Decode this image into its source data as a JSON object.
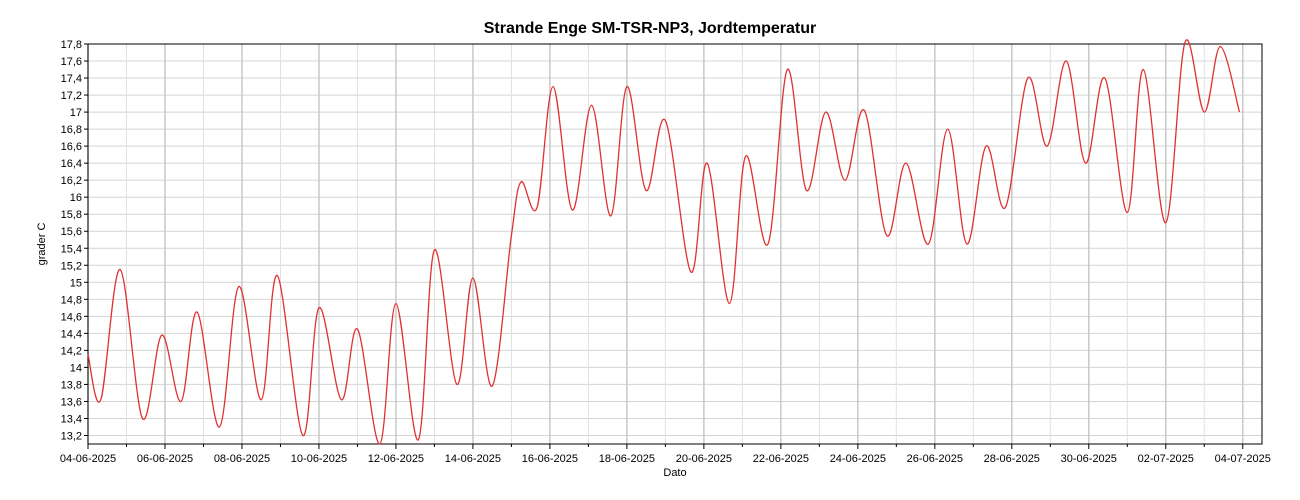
{
  "chart_data": {
    "type": "line",
    "title": "Strande Enge SM-TSR-NP3, Jordtemperatur",
    "xlabel": "Dato",
    "ylabel": "grader C",
    "ylim": [
      13.1,
      17.8
    ],
    "xlim": [
      "04-06-2025 00:00",
      "04-07-2025 12:00"
    ],
    "grid": true,
    "y_ticks": [
      "13,2",
      "13,4",
      "13,6",
      "13,8",
      "14",
      "14,2",
      "14,4",
      "14,6",
      "14,8",
      "15",
      "15,2",
      "15,4",
      "15,6",
      "15,8",
      "16",
      "16,2",
      "16,4",
      "16,6",
      "16,8",
      "17",
      "17,2",
      "17,4",
      "17,6",
      "17,8"
    ],
    "x_ticks": [
      "04-06-2025",
      "06-06-2025",
      "08-06-2025",
      "10-06-2025",
      "12-06-2025",
      "14-06-2025",
      "16-06-2025",
      "18-06-2025",
      "20-06-2025",
      "22-06-2025",
      "24-06-2025",
      "26-06-2025",
      "28-06-2025",
      "30-06-2025",
      "02-07-2025",
      "04-07-2025"
    ],
    "series": [
      {
        "color": "#e03030",
        "points": [
          [
            "04-06-2025 00:00",
            14.15
          ],
          [
            "04-06-2025 08:00",
            13.62
          ],
          [
            "04-06-2025 20:00",
            15.15
          ],
          [
            "05-06-2025 10:00",
            13.4
          ],
          [
            "05-06-2025 22:00",
            14.38
          ],
          [
            "06-06-2025 10:00",
            13.6
          ],
          [
            "06-06-2025 20:00",
            14.65
          ],
          [
            "07-06-2025 10:00",
            13.3
          ],
          [
            "07-06-2025 22:00",
            14.95
          ],
          [
            "08-06-2025 12:00",
            13.62
          ],
          [
            "08-06-2025 22:00",
            15.08
          ],
          [
            "09-06-2025 14:00",
            13.2
          ],
          [
            "10-06-2025 00:00",
            14.7
          ],
          [
            "10-06-2025 14:00",
            13.62
          ],
          [
            "11-06-2025 00:00",
            14.45
          ],
          [
            "11-06-2025 14:00",
            13.1
          ],
          [
            "12-06-2025 00:00",
            14.75
          ],
          [
            "12-06-2025 14:00",
            13.15
          ],
          [
            "13-06-2025 00:00",
            15.38
          ],
          [
            "13-06-2025 14:00",
            13.8
          ],
          [
            "14-06-2025 00:00",
            15.05
          ],
          [
            "14-06-2025 12:00",
            13.78
          ],
          [
            "15-06-2025 00:00",
            15.55
          ],
          [
            "15-06-2025 06:00",
            16.18
          ],
          [
            "15-06-2025 16:00",
            15.88
          ],
          [
            "16-06-2025 02:00",
            17.3
          ],
          [
            "16-06-2025 14:00",
            15.85
          ],
          [
            "17-06-2025 02:00",
            17.08
          ],
          [
            "17-06-2025 14:00",
            15.78
          ],
          [
            "18-06-2025 00:00",
            17.3
          ],
          [
            "18-06-2025 12:00",
            16.08
          ],
          [
            "19-06-2025 00:00",
            16.9
          ],
          [
            "19-06-2025 16:00",
            15.12
          ],
          [
            "20-06-2025 02:00",
            16.4
          ],
          [
            "20-06-2025 16:00",
            14.75
          ],
          [
            "21-06-2025 02:00",
            16.48
          ],
          [
            "21-06-2025 16:00",
            15.45
          ],
          [
            "22-06-2025 04:00",
            17.5
          ],
          [
            "22-06-2025 16:00",
            16.08
          ],
          [
            "23-06-2025 04:00",
            17.0
          ],
          [
            "23-06-2025 16:00",
            16.2
          ],
          [
            "24-06-2025 04:00",
            17.02
          ],
          [
            "24-06-2025 18:00",
            15.55
          ],
          [
            "25-06-2025 06:00",
            16.4
          ],
          [
            "25-06-2025 20:00",
            15.45
          ],
          [
            "26-06-2025 08:00",
            16.8
          ],
          [
            "26-06-2025 20:00",
            15.45
          ],
          [
            "27-06-2025 08:00",
            16.6
          ],
          [
            "27-06-2025 20:00",
            15.88
          ],
          [
            "28-06-2025 10:00",
            17.4
          ],
          [
            "28-06-2025 22:00",
            16.6
          ],
          [
            "29-06-2025 10:00",
            17.6
          ],
          [
            "29-06-2025 22:00",
            16.4
          ],
          [
            "30-06-2025 10:00",
            17.4
          ],
          [
            "01-07-2025 00:00",
            15.82
          ],
          [
            "01-07-2025 10:00",
            17.5
          ],
          [
            "02-07-2025 00:00",
            15.7
          ],
          [
            "02-07-2025 12:00",
            17.82
          ],
          [
            "03-07-2025 00:00",
            17.0
          ],
          [
            "03-07-2025 10:00",
            17.77
          ],
          [
            "03-07-2025 22:00",
            17.0
          ]
        ]
      }
    ]
  }
}
